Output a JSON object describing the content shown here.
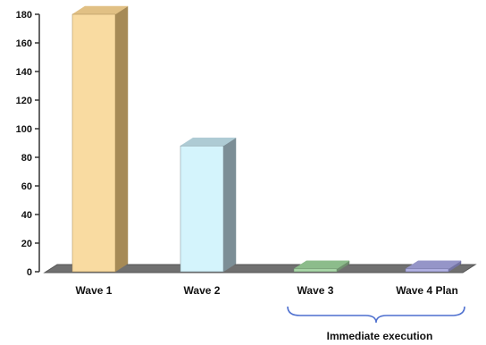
{
  "chart_data": {
    "type": "bar",
    "style": "3d-column",
    "categories": [
      "Wave 1",
      "Wave 2",
      "Wave 3",
      "Wave 4 Plan"
    ],
    "values": [
      180,
      88,
      2,
      2
    ],
    "ylim": [
      0,
      180
    ],
    "yticks": [
      "0",
      "20",
      "40",
      "60",
      "80",
      "100",
      "120",
      "140",
      "160",
      "180"
    ],
    "grid": false,
    "colors": {
      "front": [
        "#f9dba1",
        "#d4f4fc",
        "#a9d8a8",
        "#b2b2e4"
      ],
      "side": [
        "#a68a56",
        "#7c8e96",
        "#6f8f6e",
        "#7474a4"
      ],
      "top": [
        "#e1c084",
        "#aecbd4",
        "#8cbc8b",
        "#9595c8"
      ],
      "floor": "#707070",
      "floor_edge": "#555555",
      "bracket": "#4d6fcf"
    },
    "annotation": {
      "label": "Immediate execution",
      "spans": [
        "Wave 3",
        "Wave 4 Plan"
      ]
    }
  }
}
